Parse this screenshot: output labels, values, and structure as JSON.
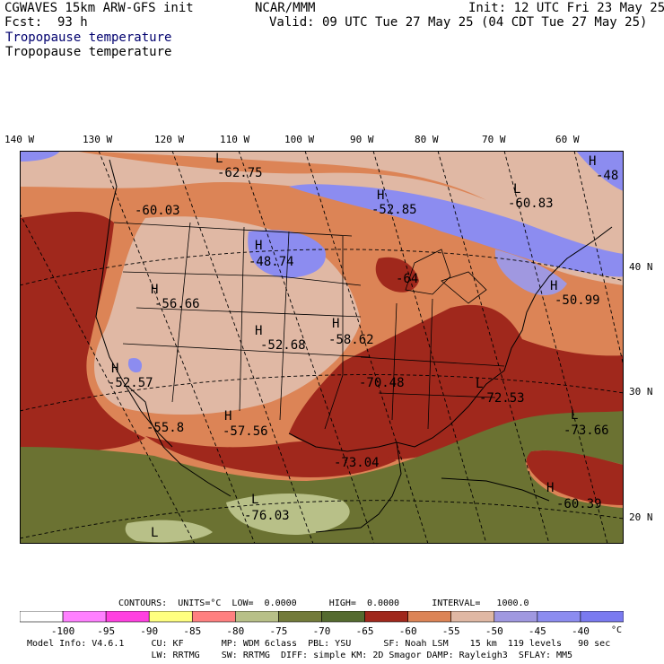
{
  "header": {
    "model": "CGWAVES 15km ARW-GFS init",
    "org": "NCAR/MMM",
    "init": "Init: 12 UTC Fri 23 May 25",
    "fcst_label": "Fcst:",
    "fcst_value": "93 h",
    "valid": "Valid: 09 UTC Tue 27 May 25 (04 CDT Tue 27 May 25)",
    "field_title": "Tropopause temperature",
    "field_subtitle": "Tropopause temperature"
  },
  "longitude_labels": [
    "140 W",
    "130 W",
    "120 W",
    "110 W",
    "100 W",
    "90 W",
    "80 W",
    "70 W",
    "60 W"
  ],
  "latitude_labels": [
    "40 N",
    "30 N",
    "20 N"
  ],
  "map_labels": [
    {
      "kind": "L",
      "value": "-62.75"
    },
    {
      "kind": "H",
      "value": "-52.85"
    },
    {
      "kind": "L",
      "value": "-60.83"
    },
    {
      "kind": "H",
      "value": "-48"
    },
    {
      "kind": "",
      "value": "-60.03"
    },
    {
      "kind": "H",
      "value": "-48.74"
    },
    {
      "kind": "",
      "value": "-64"
    },
    {
      "kind": "H",
      "value": "-50.99"
    },
    {
      "kind": "H",
      "value": "-56.66"
    },
    {
      "kind": "H",
      "value": "-52.68"
    },
    {
      "kind": "H",
      "value": "-58.62"
    },
    {
      "kind": "H",
      "value": "-52.57"
    },
    {
      "kind": "",
      "value": "-70.48"
    },
    {
      "kind": "L",
      "value": "-72.53"
    },
    {
      "kind": "",
      "value": "-55.8"
    },
    {
      "kind": "H",
      "value": "-57.56"
    },
    {
      "kind": "L",
      "value": "-73.66"
    },
    {
      "kind": "",
      "value": "-73.04"
    },
    {
      "kind": "H",
      "value": "-60.39"
    },
    {
      "kind": "L",
      "value": "-76.03"
    },
    {
      "kind": "L",
      "value": ""
    }
  ],
  "contours_line": "CONTOURS:  UNITS=°C  LOW=  0.0000      HIGH=  0.0000      INTERVAL=   1000.0",
  "legend": {
    "colors": [
      "#ffffff",
      "#ff80ff",
      "#ff40e0",
      "#ffff80",
      "#ff8080",
      "#b8c088",
      "#737b3a",
      "#556b2f",
      "#a0281c",
      "#dc8456",
      "#e0b8a4",
      "#a098e0",
      "#8c8cf0",
      "#7a7af0"
    ],
    "ticks": [
      "-100",
      "-95",
      "-90",
      "-85",
      "-80",
      "-75",
      "-70",
      "-65",
      "-60",
      "-55",
      "-50",
      "-45",
      "-40"
    ],
    "unit": "°C"
  },
  "footer": {
    "line1": "Model Info: V4.6.1     CU: KF       MP: WDM 6class  PBL: YSU      SF: Noah LSM    15 km  119 levels   90 sec",
    "line2": "                       LW: RRTMG    SW: RRTMG  DIFF: simple KM: 2D Smagor DAMP: Rayleigh3  SFLAY: MM5"
  },
  "colors": {
    "tropical_olive": "#6b7232",
    "light_green": "#b8c088",
    "dark_red": "#a0281c",
    "orange": "#dc8456",
    "pink_tan": "#e0b8a4",
    "light_purple": "#a098e0",
    "blue_purple": "#8c8cf0"
  }
}
